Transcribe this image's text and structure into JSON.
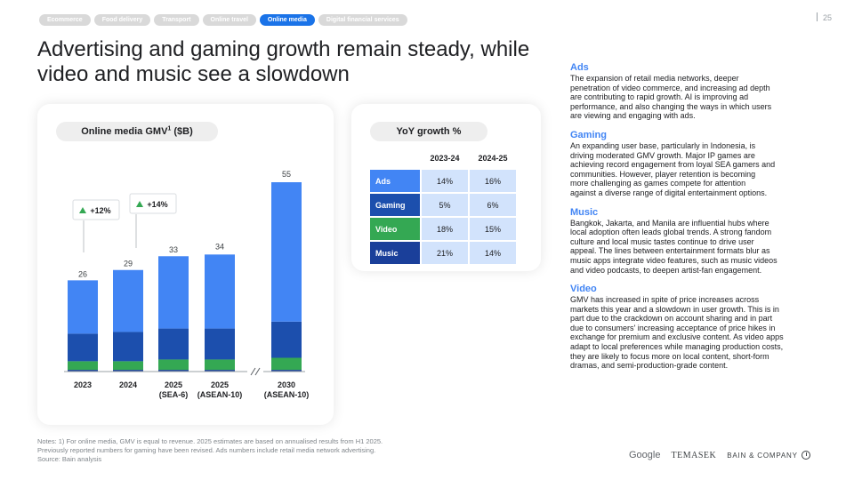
{
  "nav": {
    "tabs": [
      {
        "label": "Ecommerce",
        "active": false
      },
      {
        "label": "Food delivery",
        "active": false
      },
      {
        "label": "Transport",
        "active": false
      },
      {
        "label": "Online travel",
        "active": false
      },
      {
        "label": "Online media",
        "active": true
      },
      {
        "label": "Digital financial services",
        "active": false
      }
    ],
    "page_number": "25"
  },
  "title": "Advertising and gaming growth remain steady, while video and music see a slowdown",
  "chart": {
    "label_main": "Online media GMV",
    "label_sup": "1",
    "label_unit": " ($B)",
    "colors": {
      "ads": "#4285f4",
      "gaming": "#1c4fad",
      "video": "#34a853",
      "music": "#1a3f9a",
      "up_arrow": "#34a853"
    }
  },
  "chart_data": {
    "type": "bar",
    "stacked": true,
    "categories": [
      "2023",
      "2024",
      "2025\n(SEA-6)",
      "2025\n(ASEAN-10)",
      "2030\n(ASEAN-10)"
    ],
    "totals": [
      26,
      29,
      33,
      34,
      55
    ],
    "axis_break_before_index": 4,
    "callouts": [
      {
        "between": [
          0,
          1
        ],
        "text": "+12%"
      },
      {
        "between": [
          1,
          2
        ],
        "text": "+14%"
      }
    ],
    "series": [
      {
        "name": "Ads",
        "color": "#4285f4",
        "values": [
          15.5,
          18,
          21,
          21.5,
          40.5
        ]
      },
      {
        "name": "Gaming",
        "color": "#1c4fad",
        "values": [
          8,
          8.5,
          9,
          9,
          10.5
        ]
      },
      {
        "name": "Video",
        "color": "#34a853",
        "values": [
          2.5,
          2.5,
          3,
          3,
          3.5
        ]
      },
      {
        "name": "Music",
        "color": "#1a3f9a",
        "values": [
          0.5,
          0.5,
          0.5,
          0.5,
          0.5
        ]
      }
    ],
    "ylim": [
      0,
      60
    ]
  },
  "table": {
    "title": "YoY growth %",
    "columns": [
      "2023-24",
      "2024-25"
    ],
    "rows": [
      {
        "label": "Ads",
        "color": "#4285f4",
        "values": [
          "14%",
          "16%"
        ]
      },
      {
        "label": "Gaming",
        "color": "#1c4fad",
        "values": [
          "5%",
          "6%"
        ]
      },
      {
        "label": "Video",
        "color": "#34a853",
        "values": [
          "18%",
          "15%"
        ]
      },
      {
        "label": "Music",
        "color": "#1a3f9a",
        "values": [
          "21%",
          "14%"
        ]
      }
    ]
  },
  "sections": [
    {
      "heading": "Ads",
      "body": "The expansion of retail media networks, deeper\npenetration of video commerce, and increasing ad depth\nare contributing to rapid growth. AI is improving ad\nperformance, and also changing the ways in which users\nare viewing and engaging with ads."
    },
    {
      "heading": "Gaming",
      "body": "An expanding user base, particularly in Indonesia, is\ndriving moderated GMV growth. Major IP games are\nachieving record engagement from loyal SEA gamers and\ncommunities. However, player retention is becoming\nmore challenging as games compete for attention\nagainst a diverse range of digital entertainment options."
    },
    {
      "heading": "Music",
      "body": "Bangkok, Jakarta, and Manila are influential hubs where\nlocal adoption often leads global trends. A strong fandom\nculture and local music tastes continue to drive user\nappeal. The lines between entertainment formats blur as\nmusic apps integrate video features, such as music videos\nand video podcasts, to deepen artist-fan engagement."
    },
    {
      "heading": "Video",
      "body": "GMV has increased in spite of price increases across\nmarkets this year and a slowdown in user growth. This is in\npart due to the crackdown on account sharing and in part\ndue to consumers' increasing acceptance of price hikes in\nexchange for premium and exclusive content. As video apps\nadapt to local preferences while managing production costs,\nthey are likely to focus more on local content, short-form\ndramas, and semi-production-grade content."
    }
  ],
  "footer": {
    "notes": [
      "Notes: 1) For online media, GMV is equal to revenue. 2025 estimates are based on annualised results from H1 2025.",
      "Previously reported numbers for gaming have been revised. Ads numbers include retail media network advertising.",
      "Source: Bain analysis"
    ],
    "logos": {
      "google": "Google",
      "temasek": "TEMASEK",
      "bain": "BAIN & COMPANY"
    }
  }
}
